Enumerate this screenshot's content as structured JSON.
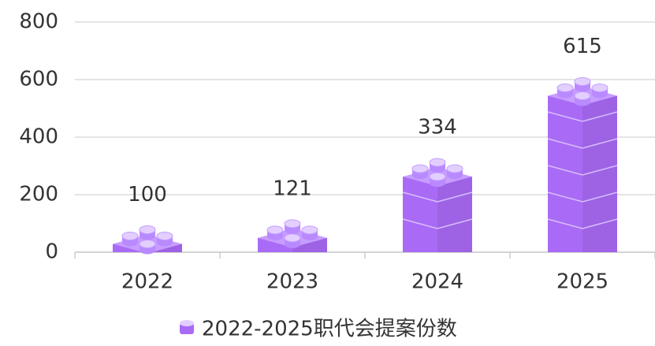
{
  "chart_data": {
    "type": "bar",
    "categories": [
      "2022",
      "2023",
      "2024",
      "2025"
    ],
    "series": [
      {
        "name": "2022-2025职代会提案份数",
        "color": "#a96bf6",
        "values": [
          100,
          121,
          334,
          615
        ]
      }
    ],
    "ylim": [
      0,
      800
    ],
    "yticks": [
      0,
      200,
      400,
      600,
      800
    ],
    "grid": true,
    "legend": "bottom"
  }
}
